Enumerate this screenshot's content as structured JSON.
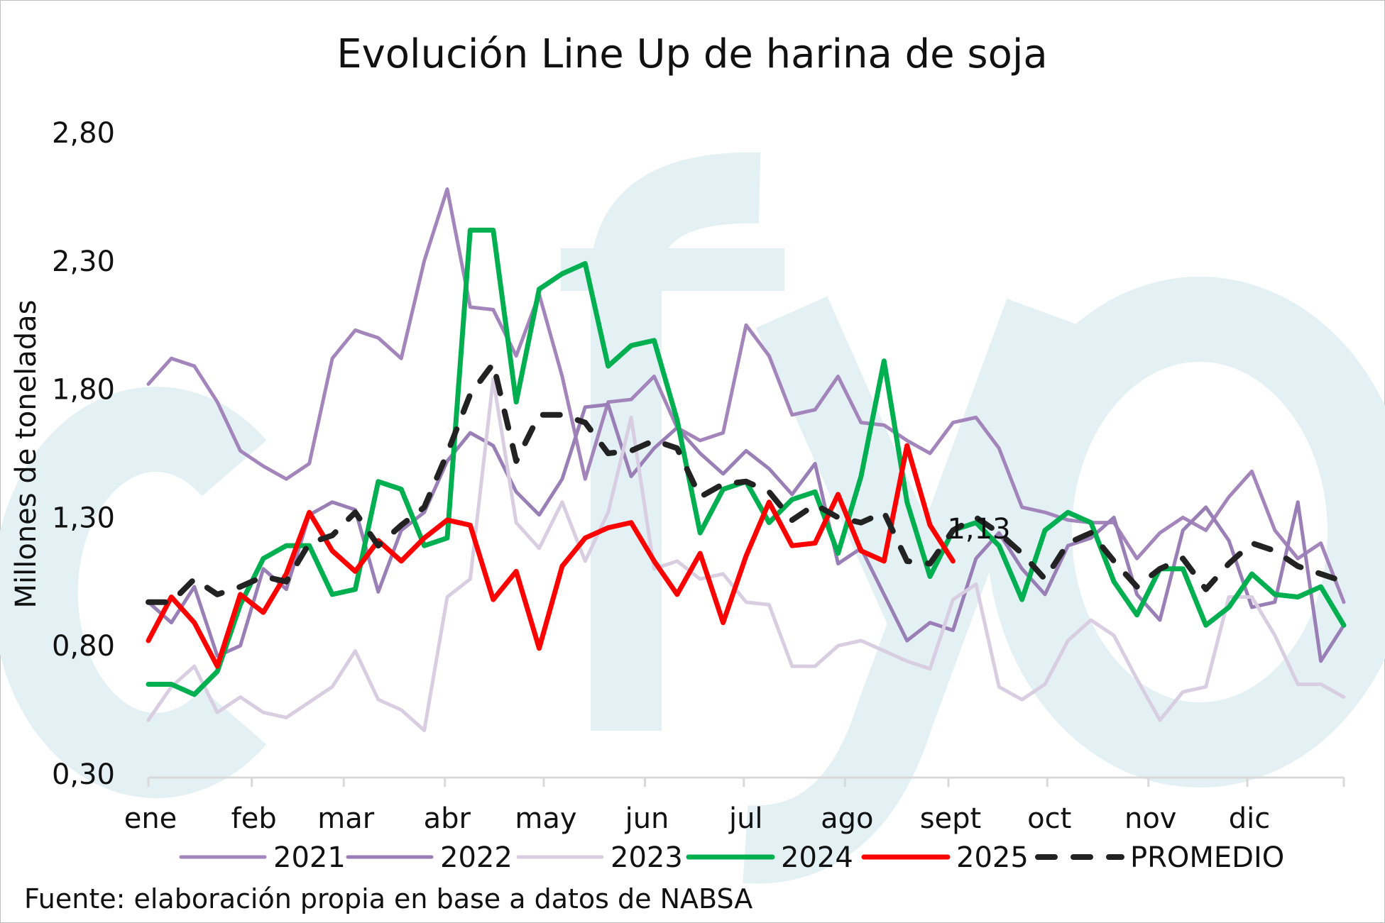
{
  "chart_data": {
    "type": "line",
    "title": "Evolución Line Up de harina de soja",
    "ylabel": "Millones de toneladas",
    "xlabel": "",
    "ylim": [
      0.3,
      2.8
    ],
    "yticks": [
      "0,30",
      "0,80",
      "1,30",
      "1,80",
      "2,30",
      "2,80"
    ],
    "ytick_values": [
      0.3,
      0.8,
      1.3,
      1.8,
      2.3,
      2.8
    ],
    "x_unit": "week of year",
    "xlim": [
      0,
      52
    ],
    "months": [
      {
        "label": "ene",
        "week": 0
      },
      {
        "label": "feb",
        "week": 4.5
      },
      {
        "label": "mar",
        "week": 8.5
      },
      {
        "label": "abr",
        "week": 12.9
      },
      {
        "label": "may",
        "week": 17.2
      },
      {
        "label": "jun",
        "week": 21.6
      },
      {
        "label": "jul",
        "week": 25.9
      },
      {
        "label": "ago",
        "week": 30.3
      },
      {
        "label": "sept",
        "week": 34.8
      },
      {
        "label": "oct",
        "week": 39.1
      },
      {
        "label": "nov",
        "week": 43.5
      },
      {
        "label": "dic",
        "week": 47.8
      }
    ],
    "grid": false,
    "legend_position": "bottom",
    "series": [
      {
        "name": "2021",
        "color": "#a385bc",
        "dashed": false,
        "values": [
          1.82,
          1.92,
          1.89,
          1.75,
          1.56,
          1.5,
          1.45,
          1.51,
          1.92,
          2.03,
          2.0,
          1.92,
          2.3,
          2.58,
          2.12,
          2.11,
          1.93,
          2.17,
          1.85,
          1.45,
          1.75,
          1.76,
          1.85,
          1.65,
          1.6,
          1.63,
          2.05,
          1.93,
          1.7,
          1.72,
          1.85,
          1.67,
          1.66,
          1.6,
          1.55,
          1.67,
          1.69,
          1.57,
          1.34,
          1.32,
          1.29,
          1.28,
          1.28,
          1.14,
          1.24,
          1.3,
          1.25,
          1.38,
          1.48,
          1.25,
          1.14,
          1.2,
          0.97
        ]
      },
      {
        "name": "2022",
        "color": "#9a7eb6",
        "dashed": false,
        "values": [
          0.97,
          0.89,
          1.03,
          0.76,
          0.8,
          1.1,
          1.02,
          1.31,
          1.36,
          1.33,
          1.01,
          1.25,
          1.32,
          1.52,
          1.63,
          1.58,
          1.4,
          1.31,
          1.45,
          1.73,
          1.74,
          1.46,
          1.57,
          1.65,
          1.55,
          1.47,
          1.56,
          1.49,
          1.39,
          1.51,
          1.12,
          1.18,
          1.0,
          0.82,
          0.89,
          0.86,
          1.14,
          1.24,
          1.1,
          1.0,
          1.19,
          1.22,
          1.3,
          1.0,
          0.9,
          1.25,
          1.34,
          1.21,
          0.95,
          0.97,
          1.36,
          0.74,
          0.88
        ]
      },
      {
        "name": "2023",
        "color": "#d9cde2",
        "dashed": false,
        "values": [
          0.51,
          0.64,
          0.72,
          0.54,
          0.6,
          0.54,
          0.52,
          0.58,
          0.64,
          0.78,
          0.59,
          0.55,
          0.47,
          0.99,
          1.06,
          1.84,
          1.28,
          1.18,
          1.36,
          1.13,
          1.32,
          1.69,
          1.1,
          1.13,
          1.06,
          1.08,
          0.97,
          0.96,
          0.72,
          0.72,
          0.8,
          0.82,
          0.78,
          0.74,
          0.71,
          0.98,
          1.04,
          0.64,
          0.59,
          0.65,
          0.82,
          0.9,
          0.84,
          0.67,
          0.51,
          0.62,
          0.64,
          0.99,
          0.99,
          0.84,
          0.65,
          0.65,
          0.6
        ]
      },
      {
        "name": "2024",
        "color": "#00b050",
        "dashed": false,
        "values": [
          0.65,
          0.65,
          0.61,
          0.7,
          0.96,
          1.14,
          1.19,
          1.19,
          1.0,
          1.02,
          1.44,
          1.41,
          1.19,
          1.22,
          2.42,
          2.42,
          1.75,
          2.19,
          2.25,
          2.29,
          1.89,
          1.97,
          1.99,
          1.68,
          1.24,
          1.41,
          1.44,
          1.28,
          1.37,
          1.4,
          1.16,
          1.46,
          1.91,
          1.36,
          1.07,
          1.25,
          1.28,
          1.19,
          0.98,
          1.25,
          1.32,
          1.28,
          1.05,
          0.92,
          1.1,
          1.1,
          0.88,
          0.95,
          1.08,
          1.0,
          0.99,
          1.03,
          0.88
        ]
      },
      {
        "name": "2025",
        "color": "#ff0000",
        "dashed": false,
        "values": [
          0.82,
          0.99,
          0.89,
          0.72,
          1.0,
          0.93,
          1.08,
          1.32,
          1.17,
          1.09,
          1.21,
          1.13,
          1.22,
          1.29,
          1.27,
          0.98,
          1.09,
          0.79,
          1.11,
          1.22,
          1.26,
          1.28,
          1.13,
          1.0,
          1.16,
          0.89,
          1.15,
          1.36,
          1.19,
          1.2,
          1.39,
          1.17,
          1.13,
          1.58,
          1.27,
          1.13
        ]
      },
      {
        "name": "PROMEDIO",
        "color": "#222222",
        "dashed": true,
        "values": [
          0.97,
          0.97,
          1.06,
          1.0,
          1.03,
          1.07,
          1.05,
          1.2,
          1.23,
          1.32,
          1.19,
          1.27,
          1.34,
          1.55,
          1.78,
          1.9,
          1.52,
          1.7,
          1.7,
          1.67,
          1.55,
          1.56,
          1.6,
          1.57,
          1.38,
          1.43,
          1.44,
          1.4,
          1.29,
          1.35,
          1.3,
          1.28,
          1.32,
          1.13,
          1.12,
          1.25,
          1.3,
          1.24,
          1.16,
          1.06,
          1.2,
          1.24,
          1.13,
          1.03,
          1.1,
          1.14,
          1.02,
          1.12,
          1.2,
          1.17,
          1.11,
          1.08,
          1.05
        ]
      }
    ],
    "annotations": [
      {
        "text": "1,13",
        "series": "2025",
        "week": 35,
        "value": 1.13
      }
    ],
    "watermark": "cfyo",
    "watermark_color": "#e3f1f5",
    "source": "Fuente: elaboración propia en base a datos de NABSA"
  }
}
